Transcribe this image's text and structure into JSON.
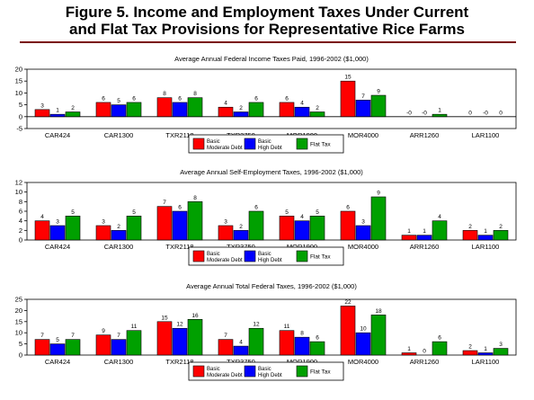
{
  "title_lines": [
    "Figure 5. Income and Employment Taxes Under Current",
    "and Flat Tax Provisions for Representative Rice Farms"
  ],
  "colors": {
    "series_1": "#ff0000",
    "series_2": "#0000ff",
    "series_3": "#00a000",
    "rule": "#7a0a0a"
  },
  "chart_data": [
    {
      "type": "bar",
      "title": "Average Annual Federal Income Taxes Paid, 1996-2002 ($1,000)",
      "categories": [
        "CAR424",
        "CAR1300",
        "TXR2118",
        "TXR3750",
        "MOR1900",
        "MOR4000",
        "ARR1260",
        "LAR1100"
      ],
      "series": [
        {
          "name": "Basic Moderate Debt",
          "values": [
            3,
            6,
            8,
            4,
            6,
            15,
            0,
            0
          ],
          "labels": [
            "3",
            "6",
            "8",
            "4",
            "6",
            "15",
            "-0",
            "0"
          ]
        },
        {
          "name": "Basic High Debt",
          "values": [
            1,
            5,
            6,
            2,
            4,
            7,
            0,
            0
          ],
          "labels": [
            "1",
            "5",
            "6",
            "2",
            "4",
            "7",
            "-0",
            "-0"
          ]
        },
        {
          "name": "Flat Tax",
          "values": [
            2,
            6,
            8,
            6,
            2,
            9,
            1,
            0
          ],
          "labels": [
            "2",
            "6",
            "8",
            "6",
            "2",
            "9",
            "1",
            "0"
          ]
        }
      ],
      "ylim": [
        -5,
        20
      ],
      "yticks": [
        -5,
        0,
        5,
        10,
        15,
        20
      ],
      "grid": false,
      "legend": "bottom"
    },
    {
      "type": "bar",
      "title": "Average Annual Self-Employment Taxes, 1996-2002 ($1,000)",
      "categories": [
        "CAR424",
        "CAR1300",
        "TXR2118",
        "TXR3750",
        "MOR1900",
        "MOR4000",
        "ARR1260",
        "LAR1100"
      ],
      "series": [
        {
          "name": "Basic Moderate Debt",
          "values": [
            4,
            3,
            7,
            3,
            5,
            6,
            1,
            2
          ],
          "labels": [
            "4",
            "3",
            "7",
            "3",
            "5",
            "6",
            "1",
            "2"
          ]
        },
        {
          "name": "Basic High Debt",
          "values": [
            3,
            2,
            6,
            2,
            4,
            3,
            1,
            1
          ],
          "labels": [
            "3",
            "2",
            "6",
            "2",
            "4",
            "3",
            "1",
            "1"
          ]
        },
        {
          "name": "Flat Tax",
          "values": [
            5,
            5,
            8,
            6,
            5,
            9,
            4,
            2
          ],
          "labels": [
            "5",
            "5",
            "8",
            "6",
            "5",
            "9",
            "4",
            "2"
          ]
        }
      ],
      "ylim": [
        0,
        12
      ],
      "yticks": [
        0,
        2,
        4,
        6,
        8,
        10,
        12
      ],
      "grid": false,
      "legend": "bottom"
    },
    {
      "type": "bar",
      "title": "Average Annual Total Federal Taxes, 1996-2002 ($1,000)",
      "categories": [
        "CAR424",
        "CAR1300",
        "TXR2118",
        "TXR3750",
        "MOR1900",
        "MOR4000",
        "ARR1260",
        "LAR1100"
      ],
      "series": [
        {
          "name": "Basic Moderate Debt",
          "values": [
            7,
            9,
            15,
            7,
            11,
            22,
            1,
            2
          ],
          "labels": [
            "7",
            "9",
            "15",
            "7",
            "11",
            "22",
            "1",
            "2"
          ]
        },
        {
          "name": "Basic High Debt",
          "values": [
            5,
            7,
            12,
            4,
            8,
            10,
            0,
            1
          ],
          "labels": [
            "5",
            "7",
            "12",
            "4",
            "8",
            "10",
            "0",
            "1"
          ]
        },
        {
          "name": "Flat Tax",
          "values": [
            7,
            11,
            16,
            12,
            6,
            18,
            6,
            3
          ],
          "labels": [
            "7",
            "11",
            "16",
            "12",
            "6",
            "18",
            "6",
            "3"
          ]
        }
      ],
      "ylim": [
        0,
        25
      ],
      "yticks": [
        0,
        5,
        10,
        15,
        20,
        25
      ],
      "grid": false,
      "legend": "bottom"
    }
  ]
}
